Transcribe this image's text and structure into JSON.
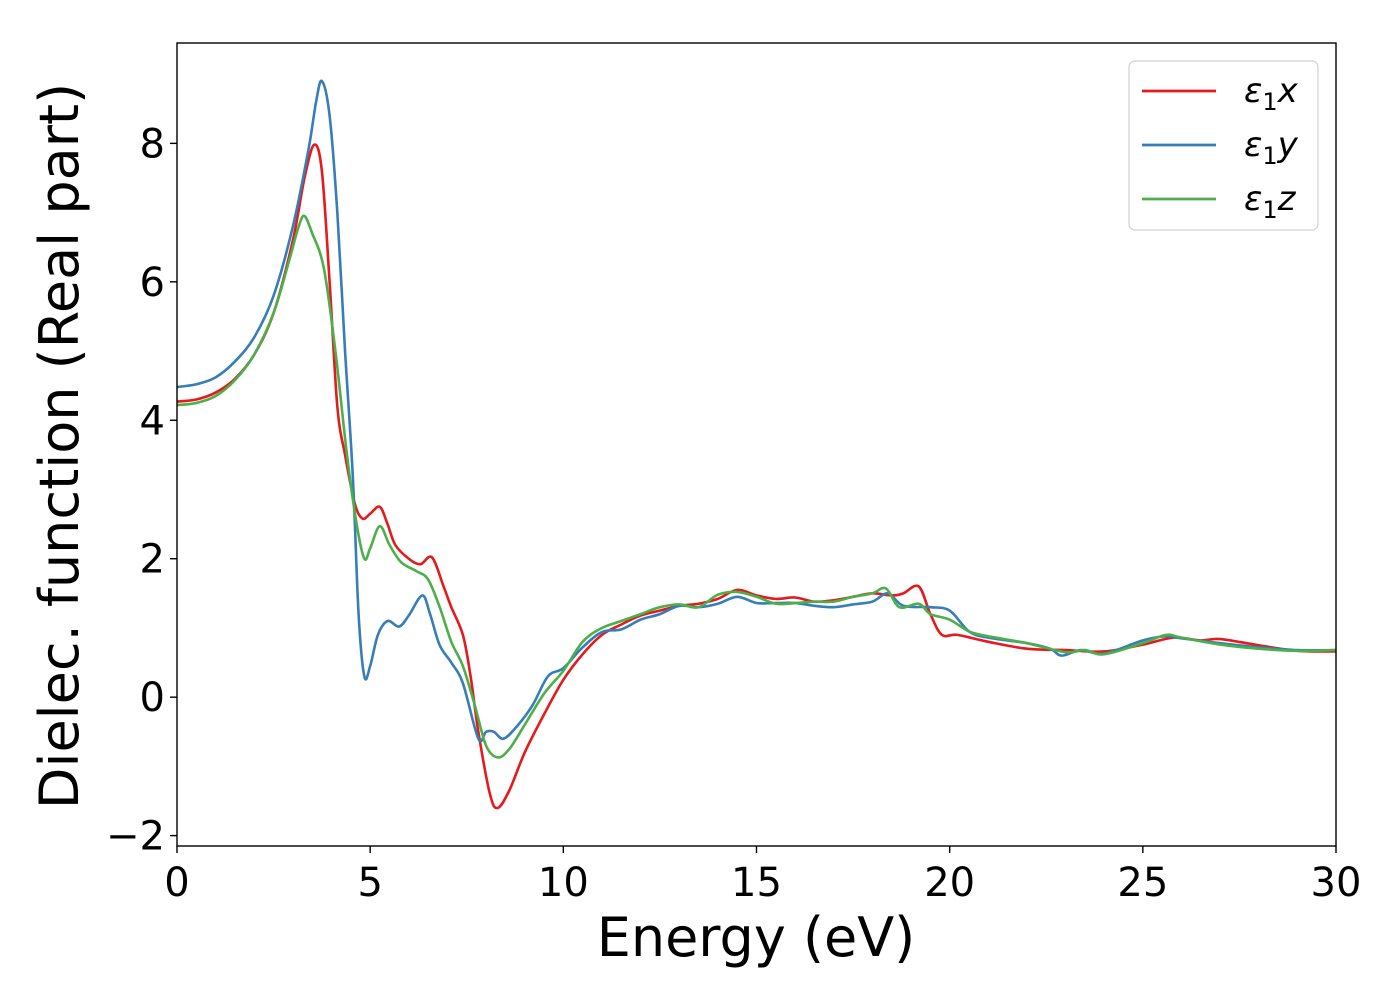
{
  "chart_data": {
    "type": "line",
    "title": "",
    "xlabel": "Energy (eV)",
    "ylabel": "Dielec. function (Real part)",
    "xlim": [
      0,
      30
    ],
    "ylim": [
      -2.15,
      9.45
    ],
    "xticks": [
      0,
      5,
      10,
      15,
      20,
      25,
      30
    ],
    "yticks": [
      -2,
      0,
      2,
      4,
      6,
      8
    ],
    "xtick_labels": [
      "0",
      "5",
      "10",
      "15",
      "20",
      "25",
      "30"
    ],
    "ytick_labels": [
      "−2",
      "0",
      "2",
      "4",
      "6",
      "8"
    ],
    "grid": false,
    "legend_position": "top-right",
    "series": [
      {
        "name": "ε₁x",
        "label_main": "ε",
        "label_sub": "1",
        "label_tail": "x",
        "color": "#e41a1c",
        "points": [
          [
            0,
            4.27
          ],
          [
            0.5,
            4.3
          ],
          [
            1.0,
            4.4
          ],
          [
            1.5,
            4.6
          ],
          [
            2.0,
            4.95
          ],
          [
            2.5,
            5.55
          ],
          [
            3.0,
            6.6
          ],
          [
            3.3,
            7.5
          ],
          [
            3.55,
            7.98
          ],
          [
            3.75,
            7.6
          ],
          [
            3.95,
            6.0
          ],
          [
            4.15,
            4.2
          ],
          [
            4.35,
            3.5
          ],
          [
            4.6,
            2.8
          ],
          [
            4.8,
            2.58
          ],
          [
            5.0,
            2.65
          ],
          [
            5.25,
            2.75
          ],
          [
            5.45,
            2.5
          ],
          [
            5.65,
            2.2
          ],
          [
            6.0,
            2.0
          ],
          [
            6.3,
            1.92
          ],
          [
            6.6,
            2.02
          ],
          [
            6.9,
            1.6
          ],
          [
            7.1,
            1.3
          ],
          [
            7.4,
            0.9
          ],
          [
            7.6,
            0.3
          ],
          [
            7.8,
            -0.5
          ],
          [
            8.1,
            -1.4
          ],
          [
            8.3,
            -1.6
          ],
          [
            8.6,
            -1.35
          ],
          [
            9.0,
            -0.8
          ],
          [
            9.5,
            -0.25
          ],
          [
            10.0,
            0.25
          ],
          [
            10.5,
            0.62
          ],
          [
            11.0,
            0.9
          ],
          [
            11.5,
            1.05
          ],
          [
            12.0,
            1.18
          ],
          [
            12.5,
            1.25
          ],
          [
            13.0,
            1.32
          ],
          [
            13.5,
            1.35
          ],
          [
            14.0,
            1.42
          ],
          [
            14.5,
            1.55
          ],
          [
            15.0,
            1.47
          ],
          [
            15.5,
            1.42
          ],
          [
            16.0,
            1.44
          ],
          [
            16.5,
            1.38
          ],
          [
            17.0,
            1.4
          ],
          [
            17.5,
            1.45
          ],
          [
            18.0,
            1.5
          ],
          [
            18.5,
            1.47
          ],
          [
            18.8,
            1.5
          ],
          [
            19.2,
            1.6
          ],
          [
            19.5,
            1.2
          ],
          [
            19.8,
            0.9
          ],
          [
            20.2,
            0.9
          ],
          [
            21.0,
            0.8
          ],
          [
            22.0,
            0.7
          ],
          [
            23.0,
            0.68
          ],
          [
            24.0,
            0.66
          ],
          [
            25.0,
            0.76
          ],
          [
            25.8,
            0.86
          ],
          [
            26.5,
            0.82
          ],
          [
            27.0,
            0.84
          ],
          [
            28.0,
            0.75
          ],
          [
            29.0,
            0.67
          ],
          [
            30.0,
            0.66
          ]
        ]
      },
      {
        "name": "ε₁y",
        "label_main": "ε",
        "label_sub": "1",
        "label_tail": "y",
        "color": "#377eb8",
        "points": [
          [
            0,
            4.48
          ],
          [
            0.5,
            4.52
          ],
          [
            1.0,
            4.62
          ],
          [
            1.5,
            4.85
          ],
          [
            2.0,
            5.2
          ],
          [
            2.5,
            5.8
          ],
          [
            3.0,
            6.8
          ],
          [
            3.4,
            7.9
          ],
          [
            3.6,
            8.6
          ],
          [
            3.75,
            8.9
          ],
          [
            3.95,
            8.4
          ],
          [
            4.15,
            7.0
          ],
          [
            4.35,
            5.0
          ],
          [
            4.55,
            3.2
          ],
          [
            4.7,
            1.2
          ],
          [
            4.85,
            0.3
          ],
          [
            5.0,
            0.45
          ],
          [
            5.2,
            0.9
          ],
          [
            5.45,
            1.1
          ],
          [
            5.75,
            1.02
          ],
          [
            6.0,
            1.18
          ],
          [
            6.35,
            1.47
          ],
          [
            6.55,
            1.2
          ],
          [
            6.8,
            0.75
          ],
          [
            7.1,
            0.5
          ],
          [
            7.4,
            0.2
          ],
          [
            7.8,
            -0.6
          ],
          [
            8.0,
            -0.5
          ],
          [
            8.2,
            -0.5
          ],
          [
            8.45,
            -0.6
          ],
          [
            8.8,
            -0.42
          ],
          [
            9.2,
            -0.12
          ],
          [
            9.6,
            0.3
          ],
          [
            10.0,
            0.42
          ],
          [
            10.5,
            0.72
          ],
          [
            11.0,
            0.94
          ],
          [
            11.5,
            0.98
          ],
          [
            12.0,
            1.12
          ],
          [
            12.5,
            1.2
          ],
          [
            13.0,
            1.32
          ],
          [
            13.5,
            1.3
          ],
          [
            14.0,
            1.35
          ],
          [
            14.5,
            1.45
          ],
          [
            15.0,
            1.36
          ],
          [
            15.5,
            1.36
          ],
          [
            16.0,
            1.36
          ],
          [
            16.5,
            1.32
          ],
          [
            17.0,
            1.3
          ],
          [
            17.5,
            1.34
          ],
          [
            18.0,
            1.38
          ],
          [
            18.4,
            1.5
          ],
          [
            18.8,
            1.32
          ],
          [
            19.5,
            1.3
          ],
          [
            20.0,
            1.25
          ],
          [
            20.5,
            0.95
          ],
          [
            21.0,
            0.86
          ],
          [
            22.0,
            0.78
          ],
          [
            22.6,
            0.7
          ],
          [
            22.9,
            0.6
          ],
          [
            23.4,
            0.68
          ],
          [
            24.0,
            0.63
          ],
          [
            25.0,
            0.82
          ],
          [
            25.6,
            0.88
          ],
          [
            26.0,
            0.85
          ],
          [
            27.0,
            0.78
          ],
          [
            28.0,
            0.72
          ],
          [
            29.0,
            0.68
          ],
          [
            30.0,
            0.68
          ]
        ]
      },
      {
        "name": "ε₁z",
        "label_main": "ε",
        "label_sub": "1",
        "label_tail": "z",
        "color": "#4daf4a",
        "points": [
          [
            0,
            4.22
          ],
          [
            0.5,
            4.25
          ],
          [
            1.0,
            4.35
          ],
          [
            1.5,
            4.58
          ],
          [
            2.0,
            4.95
          ],
          [
            2.5,
            5.55
          ],
          [
            2.9,
            6.3
          ],
          [
            3.15,
            6.8
          ],
          [
            3.3,
            6.95
          ],
          [
            3.5,
            6.7
          ],
          [
            3.8,
            6.2
          ],
          [
            4.1,
            5.0
          ],
          [
            4.4,
            3.5
          ],
          [
            4.65,
            2.5
          ],
          [
            4.85,
            2.0
          ],
          [
            5.0,
            2.15
          ],
          [
            5.25,
            2.47
          ],
          [
            5.5,
            2.2
          ],
          [
            5.8,
            1.95
          ],
          [
            6.2,
            1.82
          ],
          [
            6.5,
            1.7
          ],
          [
            6.8,
            1.3
          ],
          [
            7.1,
            0.8
          ],
          [
            7.4,
            0.45
          ],
          [
            7.7,
            -0.1
          ],
          [
            8.0,
            -0.7
          ],
          [
            8.3,
            -0.87
          ],
          [
            8.6,
            -0.75
          ],
          [
            9.0,
            -0.4
          ],
          [
            9.5,
            0.05
          ],
          [
            10.0,
            0.38
          ],
          [
            10.5,
            0.8
          ],
          [
            11.0,
            1.0
          ],
          [
            11.5,
            1.1
          ],
          [
            12.0,
            1.2
          ],
          [
            12.5,
            1.3
          ],
          [
            13.0,
            1.34
          ],
          [
            13.5,
            1.3
          ],
          [
            14.0,
            1.48
          ],
          [
            14.5,
            1.52
          ],
          [
            15.0,
            1.45
          ],
          [
            15.5,
            1.35
          ],
          [
            16.0,
            1.36
          ],
          [
            16.5,
            1.38
          ],
          [
            17.0,
            1.38
          ],
          [
            17.5,
            1.45
          ],
          [
            18.0,
            1.5
          ],
          [
            18.35,
            1.57
          ],
          [
            18.7,
            1.3
          ],
          [
            19.2,
            1.35
          ],
          [
            19.5,
            1.2
          ],
          [
            20.0,
            1.12
          ],
          [
            20.5,
            0.95
          ],
          [
            21.0,
            0.88
          ],
          [
            22.0,
            0.78
          ],
          [
            23.0,
            0.65
          ],
          [
            23.5,
            0.68
          ],
          [
            24.0,
            0.62
          ],
          [
            25.0,
            0.78
          ],
          [
            25.6,
            0.9
          ],
          [
            26.0,
            0.86
          ],
          [
            27.0,
            0.76
          ],
          [
            28.0,
            0.7
          ],
          [
            29.0,
            0.67
          ],
          [
            30.0,
            0.68
          ]
        ]
      }
    ]
  }
}
